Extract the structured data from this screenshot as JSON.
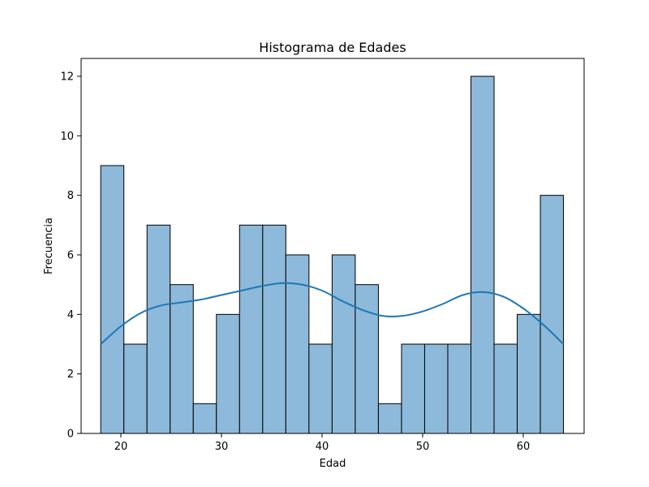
{
  "chart_data": {
    "type": "bar",
    "title": "Histograma de Edades",
    "xlabel": "Edad",
    "ylabel": "Frecuencia",
    "xlim": [
      16.05,
      66.05
    ],
    "ylim": [
      0,
      12.6
    ],
    "xticks": [
      20,
      30,
      40,
      50,
      60
    ],
    "yticks": [
      0,
      2,
      4,
      6,
      8,
      10,
      12
    ],
    "bins": {
      "start": 18,
      "width": 2.3,
      "counts": [
        9,
        3,
        7,
        5,
        1,
        4,
        7,
        7,
        6,
        3,
        6,
        5,
        1,
        3,
        3,
        3,
        12,
        3,
        4,
        8
      ]
    },
    "kde": {
      "x": [
        18,
        20,
        22,
        24,
        26,
        28,
        30,
        32,
        34,
        36,
        38,
        40,
        42,
        44,
        46,
        48,
        50,
        52,
        54,
        56,
        58,
        60,
        62,
        64
      ],
      "y": [
        3.0,
        3.6,
        4.05,
        4.3,
        4.4,
        4.5,
        4.65,
        4.8,
        4.95,
        5.05,
        5.0,
        4.8,
        4.45,
        4.15,
        3.95,
        3.95,
        4.1,
        4.35,
        4.65,
        4.75,
        4.6,
        4.2,
        3.65,
        3.0
      ]
    },
    "grid": false,
    "colors": {
      "bar_fill": "#8db9da",
      "bar_edge": "#000000",
      "kde_line": "#1f77b4"
    }
  }
}
